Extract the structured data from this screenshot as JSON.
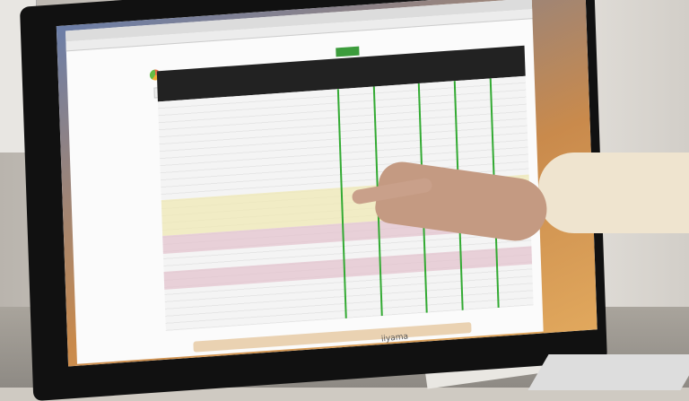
{
  "scene": {
    "monitor_brand": "iiyama"
  },
  "colors": {
    "accent_green": "#3c9c3c",
    "header_dark": "#222222",
    "highlight_yellow": "#efe8b0",
    "highlight_pink": "#e3c0cc"
  }
}
